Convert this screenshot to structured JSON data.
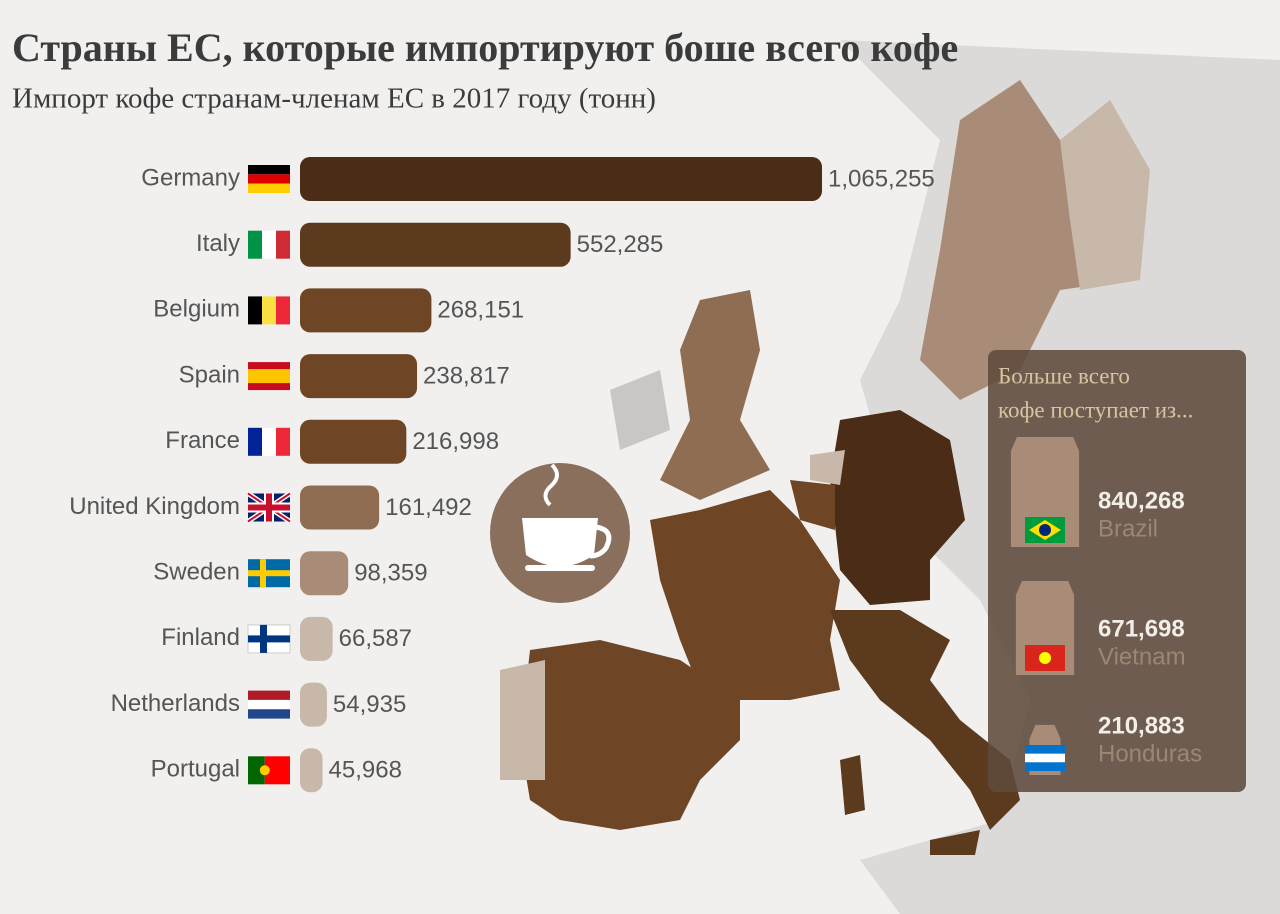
{
  "chart_data": {
    "type": "bar",
    "title": "Страны ЕС, которые импортируют боше всего кофе",
    "subtitle": "Импорт кофе странам-членам ЕС в 2017 году (тонн)",
    "categories": [
      "Germany",
      "Italy",
      "Belgium",
      "Spain",
      "France",
      "United Kingdom",
      "Sweden",
      "Finland",
      "Netherlands",
      "Portugal"
    ],
    "values": [
      1065255,
      552285,
      268151,
      238817,
      216998,
      161492,
      98359,
      66587,
      54935,
      45968
    ],
    "value_labels": [
      "1,065,255",
      "552,285",
      "268,151",
      "238,817",
      "216,998",
      "161,492",
      "98,359",
      "66,587",
      "54,935",
      "45,968"
    ],
    "colors": [
      "#4a2c17",
      "#5b3a1e",
      "#6e4625",
      "#6e4625",
      "#6e4625",
      "#8f6d52",
      "#a88c77",
      "#c7b8aa",
      "#c7b8aa",
      "#c7b8aa"
    ]
  },
  "sources": {
    "title": [
      "Больше всего",
      "кофе поступает из..."
    ],
    "names": [
      "Brazil",
      "Vietnam",
      "Honduras"
    ],
    "values": [
      840268,
      671698,
      210883
    ],
    "value_labels": [
      "840,268",
      "671,698",
      "210,883"
    ]
  }
}
